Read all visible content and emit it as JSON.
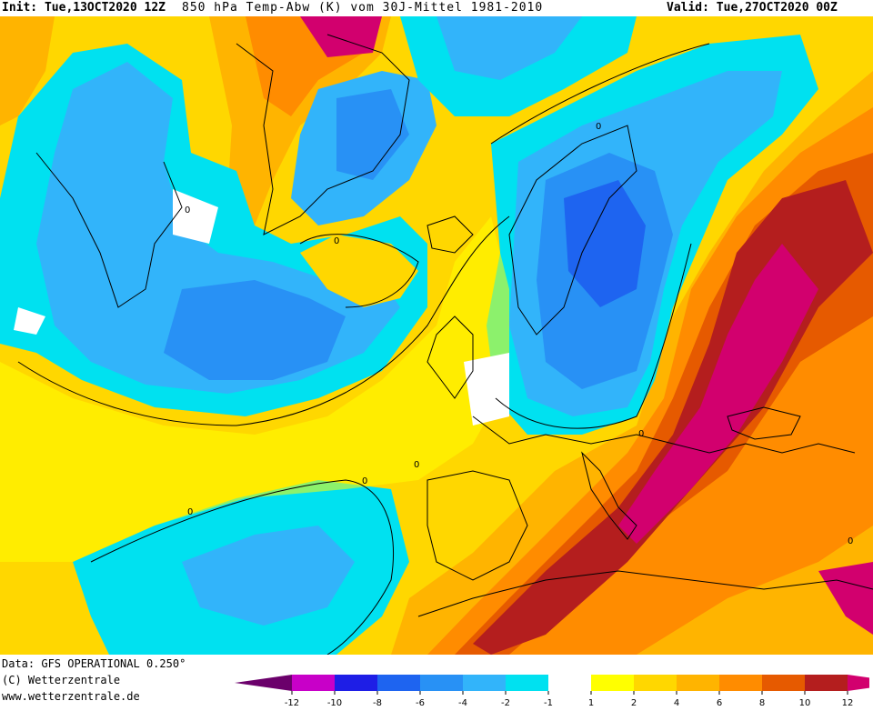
{
  "header": {
    "init": "Init: Tue,13OCT2020 12Z",
    "product": "850 hPa Temp-Abw (K) vom 30J-Mittel 1981-2010",
    "valid": "Valid: Tue,27OCT2020 00Z"
  },
  "footer": {
    "data_source": "Data: GFS OPERATIONAL 0.250°",
    "copyright": "(C) Wetterzentrale",
    "website": "www.wetterzentrale.de"
  },
  "legend": {
    "ticks": [
      "-12",
      "-10",
      "-8",
      "-6",
      "-4",
      "-2",
      "-1",
      "1",
      "2",
      "4",
      "6",
      "8",
      "10",
      "12"
    ],
    "colors": [
      "#6b006b",
      "#c800c8",
      "#1e1ee6",
      "#1e64f0",
      "#2891f5",
      "#32b4fa",
      "#00e1f0",
      "#ffffff",
      "#ffff00",
      "#ffd700",
      "#ffb400",
      "#ff8c00",
      "#e65a00",
      "#b41e1e",
      "#d2006e"
    ]
  },
  "map": {
    "contour_labels": [
      "0",
      "0",
      "0",
      "0",
      "0",
      "0",
      "0",
      "0"
    ],
    "colors": {
      "white": "#ffffff",
      "yellow": "#ffff00",
      "gold": "#ffd700",
      "orange": "#ffb400",
      "dark_orange": "#ff8c00",
      "red_orange": "#e65a00",
      "brick": "#b41e1e",
      "magenta": "#d2006e",
      "cyan": "#00e1f0",
      "sky": "#32b4fa",
      "blue": "#2891f5",
      "mid_blue": "#1e64f0"
    }
  }
}
